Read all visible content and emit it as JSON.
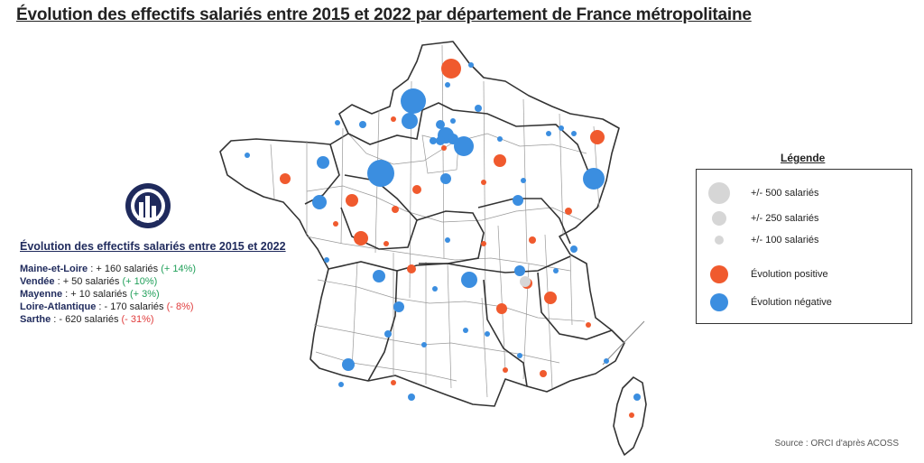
{
  "title": "Évolution des effectifs salariés entre 2015 et 2022 par département de France métropolitaine",
  "left_panel": {
    "heading": "Évolution des effectifs salariés entre 2015 et 2022",
    "rows": [
      {
        "dept": "Maine-et-Loire",
        "value": " : + 160 salariés ",
        "pct": "(+ 14%)",
        "trend": "positive"
      },
      {
        "dept": "Vendée",
        "value": " : + 50 salariés ",
        "pct": "(+ 10%)",
        "trend": "positive"
      },
      {
        "dept": "Mayenne",
        "value": " : + 10 salariés ",
        "pct": "(+ 3%)",
        "trend": "positive"
      },
      {
        "dept": "Loire-Atlantique",
        "value": " : - 170 salariés ",
        "pct": "(- 8%)",
        "trend": "negative"
      },
      {
        "dept": "Sarthe",
        "value": " : - 620 salariés ",
        "pct": "(- 31%)",
        "trend": "negative"
      }
    ]
  },
  "legend": {
    "title": "Légende",
    "size_items": [
      {
        "label": "+/- 500 salariés",
        "salaries": 500
      },
      {
        "label": "+/- 250 salariés",
        "salaries": 250
      },
      {
        "label": "+/- 100 salariés",
        "salaries": 100
      }
    ],
    "color_items": [
      {
        "label": "Évolution positive",
        "color": "#f05a2e"
      },
      {
        "label": "Évolution négative",
        "color": "#3b8ee0"
      }
    ],
    "size_symbol_color": "#d6d6d6"
  },
  "source": "Source : ORCI d'après ACOSS",
  "colors": {
    "positive": "#f05a2e",
    "negative": "#3b8ee0",
    "pct_positive": "#21a05a",
    "pct_negative": "#e03c3c",
    "text_dark": "#1f2a5c"
  },
  "icons": {
    "logo": "orci-logo"
  }
}
